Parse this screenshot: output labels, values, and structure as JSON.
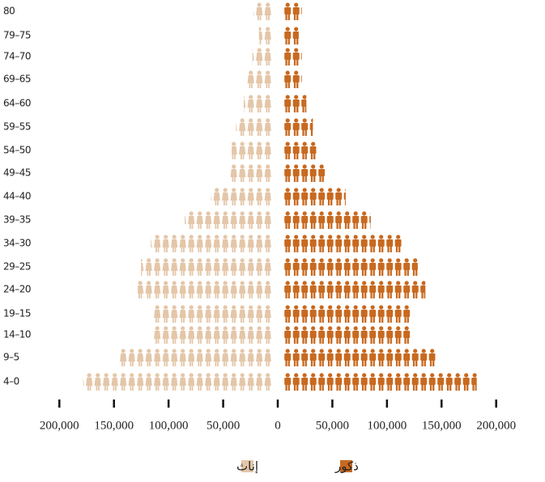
{
  "chart_data": {
    "type": "pyramid",
    "categories": [
      "80",
      "79–75",
      "74–70",
      "69–65",
      "64–60",
      "59–55",
      "54–50",
      "49–45",
      "44–40",
      "39–35",
      "34–30",
      "29–25",
      "24–20",
      "19–15",
      "14–10",
      "9–5",
      "4–0"
    ],
    "series": [
      {
        "name": "إناث",
        "color": "#e4c6a8",
        "values": [
          17000,
          12000,
          18000,
          23000,
          26000,
          33000,
          37000,
          39000,
          56000,
          80000,
          111000,
          120000,
          123000,
          109000,
          109000,
          141000,
          173000
        ]
      },
      {
        "name": "ذكور",
        "color": "#c8691f",
        "values": [
          17000,
          14000,
          17000,
          17000,
          21000,
          27000,
          30000,
          38000,
          57000,
          80000,
          108000,
          123000,
          130000,
          116000,
          116000,
          139000,
          177000
        ]
      }
    ],
    "xlim": [
      -200000,
      200000
    ],
    "xticks": [
      {
        "value": -200000,
        "label": "200,000"
      },
      {
        "value": -150000,
        "label": "150,000"
      },
      {
        "value": -100000,
        "label": "100,000"
      },
      {
        "value": -50000,
        "label": "50,000"
      },
      0,
      {
        "value": 50000,
        "label": "50,000"
      },
      {
        "value": 100000,
        "label": "100,000"
      },
      {
        "value": 150000,
        "label": "150,000"
      },
      {
        "value": 200000,
        "label": "200,000"
      }
    ]
  }
}
